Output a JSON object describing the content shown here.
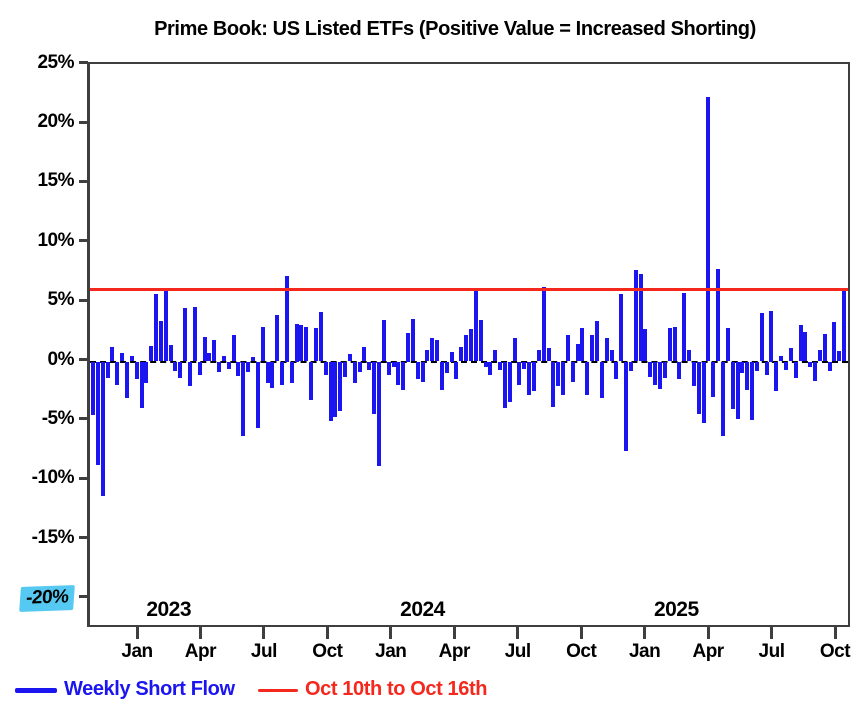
{
  "title": "Prime Book: US Listed ETFs (Positive Value = Increased Shorting)",
  "colors": {
    "bar_blue": "#1b15ef",
    "reference_red": "#f5281e",
    "highlight_cyan": "#55c9f2",
    "axis_gray": "#3f3f3f",
    "text_black": "#000000"
  },
  "y_axis": {
    "tick_labels": [
      "25%",
      "20%",
      "15%",
      "10%",
      "5%",
      "0%",
      "-5%",
      "-10%",
      "-15%",
      "-20%"
    ],
    "tick_values": [
      25,
      20,
      15,
      10,
      5,
      0,
      -5,
      -10,
      -15,
      -20
    ],
    "highlighted_label": "-20%"
  },
  "x_axis": {
    "month_labels": [
      "Jan",
      "Apr",
      "Jul",
      "Oct",
      "Jan",
      "Apr",
      "Jul",
      "Oct",
      "Jan",
      "Apr",
      "Jul",
      "Oct"
    ],
    "year_labels": [
      "2023",
      "2024",
      "2025"
    ]
  },
  "legend": {
    "series_label": "Weekly Short Flow",
    "reference_label": "Oct 10th to Oct 16th"
  },
  "chart_data": {
    "type": "bar",
    "title": "Prime Book: US Listed ETFs (Positive Value = Increased Shorting)",
    "x_unit": "week",
    "x_tick_labels": [
      "Jan 2023",
      "Apr 2023",
      "Jul 2023",
      "Oct 2023",
      "Jan 2024",
      "Apr 2024",
      "Jul 2024",
      "Oct 2024",
      "Jan 2025",
      "Apr 2025",
      "Jul 2025",
      "Oct 2025"
    ],
    "ylim": [
      -22.4,
      25.2
    ],
    "y_tick_step": 5,
    "zero_line_style": "dashed-black",
    "grid": false,
    "legend_position": "bottom",
    "series_name": "Weekly Short Flow",
    "values": [
      -4.5,
      -8.7,
      -11.3,
      -1.4,
      1.2,
      -2.0,
      0.7,
      -3.1,
      0.5,
      -1.5,
      -3.9,
      -1.8,
      1.3,
      5.7,
      3.4,
      6.1,
      1.4,
      -0.8,
      -1.4,
      4.5,
      -2.1,
      4.6,
      -1.1,
      2.1,
      0.7,
      1.8,
      -0.9,
      0.5,
      -0.6,
      2.2,
      -1.2,
      -6.3,
      -0.9,
      0.4,
      -5.6,
      2.9,
      -1.8,
      -2.2,
      3.9,
      -2.0,
      7.2,
      -1.8,
      3.2,
      3.1,
      2.9,
      -3.2,
      2.8,
      4.2,
      -1.1,
      -5.0,
      -4.7,
      -4.2,
      -1.3,
      0.6,
      -1.8,
      -0.9,
      1.2,
      -0.7,
      -4.4,
      -8.8,
      3.5,
      -1.1,
      -0.5,
      -2.0,
      -2.4,
      2.4,
      3.6,
      -1.5,
      -1.7,
      1.0,
      2.0,
      1.8,
      -2.4,
      -1.0,
      0.8,
      -1.5,
      1.2,
      2.2,
      2.7,
      6.1,
      3.5,
      -0.5,
      -1.1,
      1.0,
      -0.7,
      -3.9,
      -3.4,
      2.0,
      -2.0,
      -0.6,
      -2.8,
      -2.5,
      1.0,
      6.3,
      1.1,
      -3.8,
      -2.1,
      -2.8,
      2.2,
      -1.7,
      1.5,
      2.8,
      -2.8,
      2.2,
      3.4,
      -3.1,
      2.0,
      1.0,
      -1.5,
      5.7,
      -7.5,
      -0.8,
      7.7,
      7.4,
      2.7,
      -1.3,
      -2.0,
      -2.3,
      -1.4,
      2.8,
      2.9,
      -1.5,
      5.8,
      1.0,
      -2.1,
      -4.4,
      -5.2,
      22.3,
      -3.0,
      7.8,
      -6.3,
      2.8,
      -4.0,
      -4.8,
      -1.0,
      -2.4,
      -4.9,
      -0.8,
      4.1,
      -1.1,
      4.3,
      -2.5,
      0.5,
      -0.7,
      1.1,
      -1.4,
      3.1,
      2.5,
      -0.5,
      -1.6,
      1.0,
      2.3,
      -0.8,
      3.3,
      0.9,
      6.2
    ],
    "reference_line": {
      "value": 6.1,
      "label": "Oct 10th to Oct 16th",
      "color": "#f5281e"
    }
  }
}
